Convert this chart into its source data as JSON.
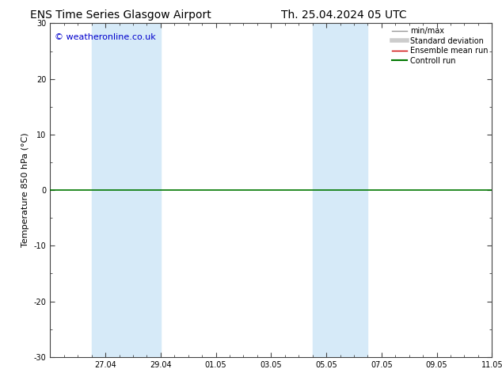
{
  "title_left": "ENS Time Series Glasgow Airport",
  "title_right": "Th. 25.04.2024 05 UTC",
  "ylabel": "Temperature 850 hPa (°C)",
  "watermark": "© weatheronline.co.uk",
  "ylim": [
    -30,
    30
  ],
  "yticks": [
    -30,
    -20,
    -10,
    0,
    10,
    20,
    30
  ],
  "xtick_labels": [
    "27.04",
    "29.04",
    "01.05",
    "03.05",
    "05.05",
    "07.05",
    "09.05",
    "11.05"
  ],
  "xtick_positions": [
    2,
    4,
    6,
    8,
    10,
    12,
    14,
    16
  ],
  "shade_bands": [
    [
      1.5,
      2.5
    ],
    [
      2.5,
      4.0
    ],
    [
      9.5,
      10.5
    ],
    [
      10.5,
      11.5
    ]
  ],
  "shade_color": "#d6eaf8",
  "background_color": "#ffffff",
  "zero_line_color": "#007700",
  "legend_items": [
    {
      "label": "min/max",
      "color": "#999999",
      "lw": 1.0
    },
    {
      "label": "Standard deviation",
      "color": "#cccccc",
      "lw": 4.0
    },
    {
      "label": "Ensemble mean run",
      "color": "#cc0000",
      "lw": 1.0
    },
    {
      "label": "Controll run",
      "color": "#007700",
      "lw": 1.5
    }
  ],
  "title_fontsize": 10,
  "watermark_color": "#0000cc",
  "watermark_fontsize": 8,
  "tick_fontsize": 7,
  "ylabel_fontsize": 8,
  "legend_fontsize": 7,
  "spine_color": "#444444",
  "xlim": [
    0,
    16
  ]
}
